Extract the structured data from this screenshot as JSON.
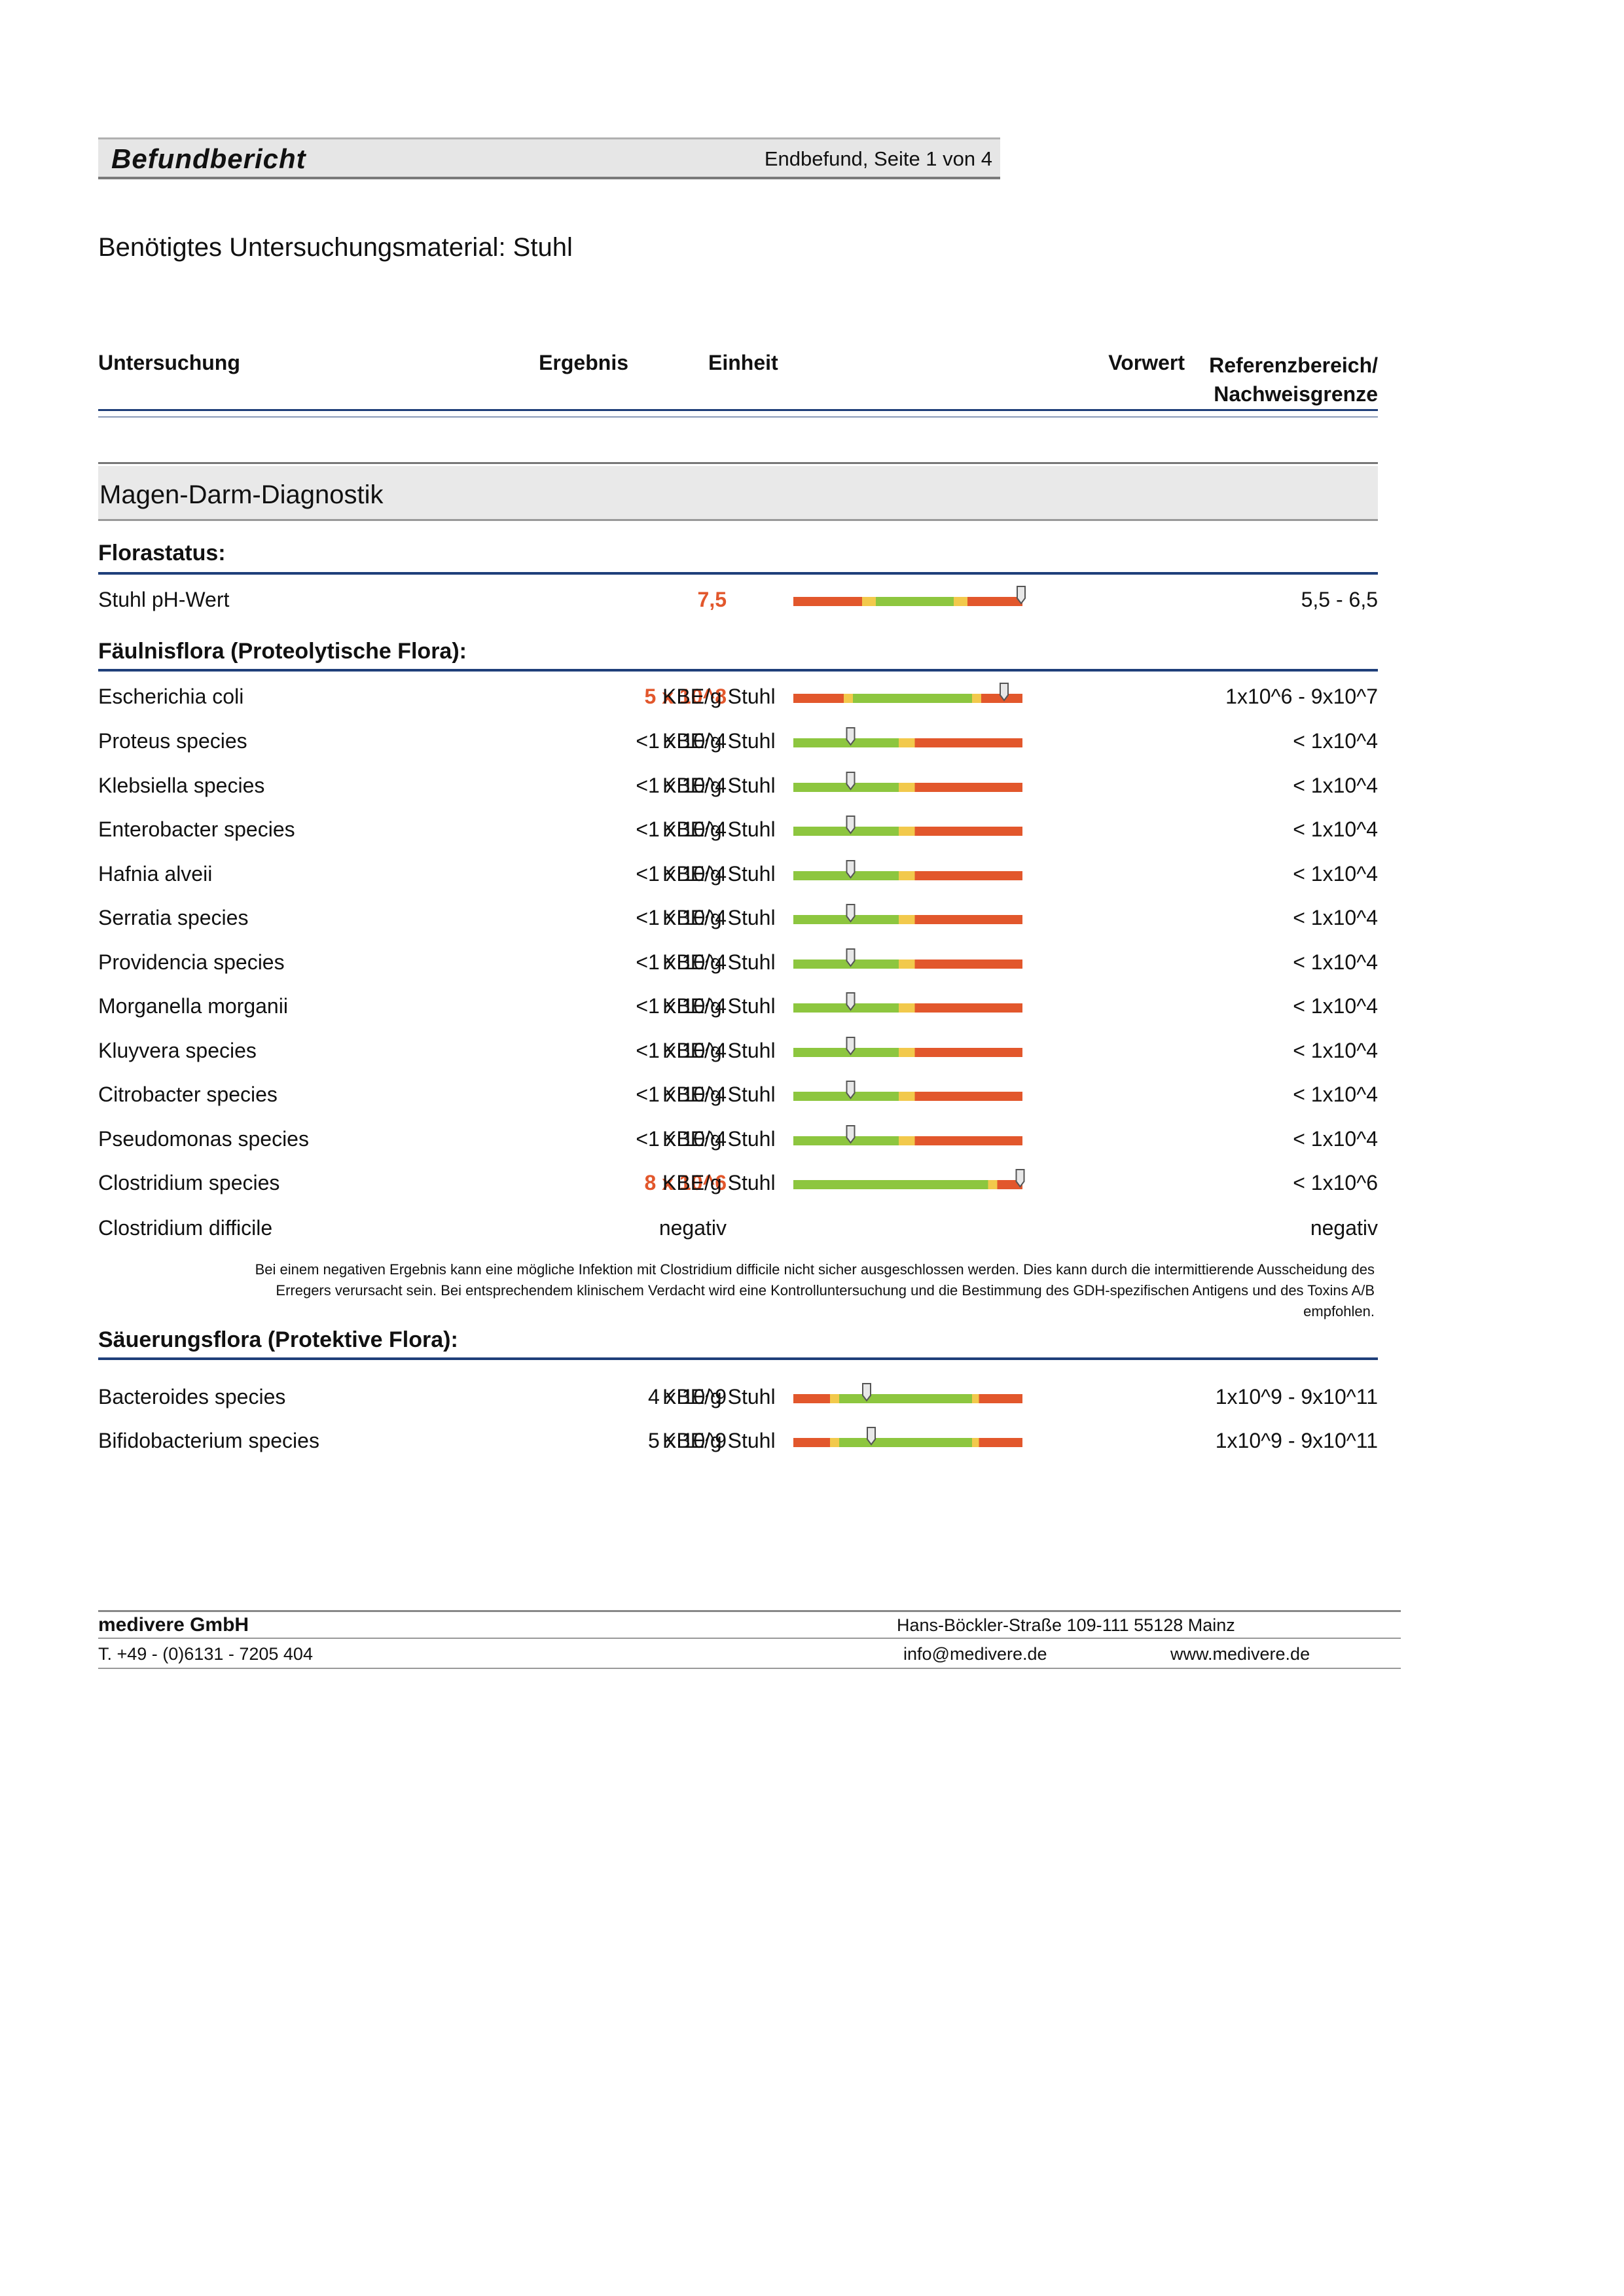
{
  "header": {
    "title": "Befundbericht",
    "page_info": "Endbefund, Seite 1 von 4"
  },
  "material": "Benötigtes Untersuchungsmaterial: Stuhl",
  "columns": {
    "test": "Untersuchung",
    "result": "Ergebnis",
    "unit": "Einheit",
    "previous": "Vorwert",
    "reference_1": "Referenzbereich/",
    "reference_2": "Nachweisgrenze"
  },
  "section_title": "Magen-Darm-Diagnostik",
  "groups": {
    "florastatus": "Florastatus:",
    "faeulnis": "Fäulnisflora (Proteolytische Flora):",
    "saeuerung": "Säuerungsflora (Protektive Flora):"
  },
  "colors": {
    "red": "#e2572c",
    "green": "#8dc63f",
    "yellow": "#f2c94c",
    "rule_blue": "#1f3f7a"
  },
  "rows": [
    {
      "name": "Stuhl pH-Wert",
      "result": "7,5",
      "unit": "",
      "reference": "5,5 - 6,5",
      "high": true,
      "bar": "ph",
      "marker": 1.0
    },
    {
      "name": "Escherichia coli",
      "result": "5 x 10^8",
      "unit": "KBE/g Stuhl",
      "reference": "1x10^6 - 9x10^7",
      "high": true,
      "bar": "range",
      "marker": 0.92
    },
    {
      "name": "Proteus species",
      "result": "<1 x 10^4",
      "unit": "KBE/g Stuhl",
      "reference": "< 1x10^4",
      "high": false,
      "bar": "low",
      "marker": 0.25
    },
    {
      "name": "Klebsiella species",
      "result": "<1 x 10^4",
      "unit": "KBE/g Stuhl",
      "reference": "< 1x10^4",
      "high": false,
      "bar": "low",
      "marker": 0.25
    },
    {
      "name": "Enterobacter species",
      "result": "<1 x 10^4",
      "unit": "KBE/g Stuhl",
      "reference": "< 1x10^4",
      "high": false,
      "bar": "low",
      "marker": 0.25
    },
    {
      "name": "Hafnia alveii",
      "result": "<1 x 10^4",
      "unit": "KBE/g Stuhl",
      "reference": "< 1x10^4",
      "high": false,
      "bar": "low",
      "marker": 0.25
    },
    {
      "name": "Serratia species",
      "result": "<1 x 10^4",
      "unit": "KBE/g Stuhl",
      "reference": "< 1x10^4",
      "high": false,
      "bar": "low",
      "marker": 0.25
    },
    {
      "name": "Providencia species",
      "result": "<1 x 10^4",
      "unit": "KBE/g Stuhl",
      "reference": "< 1x10^4",
      "high": false,
      "bar": "low",
      "marker": 0.25
    },
    {
      "name": "Morganella morganii",
      "result": "<1 x 10^4",
      "unit": "KBE/g Stuhl",
      "reference": "< 1x10^4",
      "high": false,
      "bar": "low",
      "marker": 0.25
    },
    {
      "name": "Kluyvera species",
      "result": "<1 x 10^4",
      "unit": "KBE/g Stuhl",
      "reference": "< 1x10^4",
      "high": false,
      "bar": "low",
      "marker": 0.25
    },
    {
      "name": "Citrobacter species",
      "result": "<1 x 10^4",
      "unit": "KBE/g Stuhl",
      "reference": "< 1x10^4",
      "high": false,
      "bar": "low",
      "marker": 0.25
    },
    {
      "name": "Pseudomonas species",
      "result": "<1 x 10^4",
      "unit": "KBE/g Stuhl",
      "reference": "< 1x10^4",
      "high": false,
      "bar": "low",
      "marker": 0.25
    },
    {
      "name": "Clostridium species",
      "result": "8 x 10^6",
      "unit": "KBE/g Stuhl",
      "reference": "< 1x10^6",
      "high": true,
      "bar": "lowwide",
      "marker": 0.99
    },
    {
      "name": "Clostridium difficile",
      "result": "negativ",
      "unit": "",
      "reference": "negativ",
      "high": false,
      "bar": "none",
      "marker": null
    },
    {
      "name": "Bacteroides species",
      "result": "4 x 10^9",
      "unit": "KBE/g Stuhl",
      "reference": "1x10^9 - 9x10^11",
      "high": false,
      "bar": "range2",
      "marker": 0.32
    },
    {
      "name": "Bifidobacterium species",
      "result": "5 x 10^9",
      "unit": "KBE/g Stuhl",
      "reference": "1x10^9 - 9x10^11",
      "high": false,
      "bar": "range2",
      "marker": 0.34
    }
  ],
  "note_1": "Bei einem negativen Ergebnis kann eine mögliche Infektion mit Clostridium difficile nicht sicher ausgeschlossen werden. Dies kann durch die intermittierende Ausscheidung des",
  "note_2": "Erregers verursacht sein. Bei entsprechendem klinischem Verdacht wird eine Kontrolluntersuchung und die Bestimmung des GDH-spezifischen Antigens und des Toxins A/B",
  "note_3": "empfohlen.",
  "footer": {
    "company": "medivere GmbH",
    "phone": "T. +49 - (0)6131 - 7205 404",
    "address": "Hans-Böckler-Straße 109-111   55128 Mainz",
    "email": "info@medivere.de",
    "web": "www.medivere.de"
  }
}
